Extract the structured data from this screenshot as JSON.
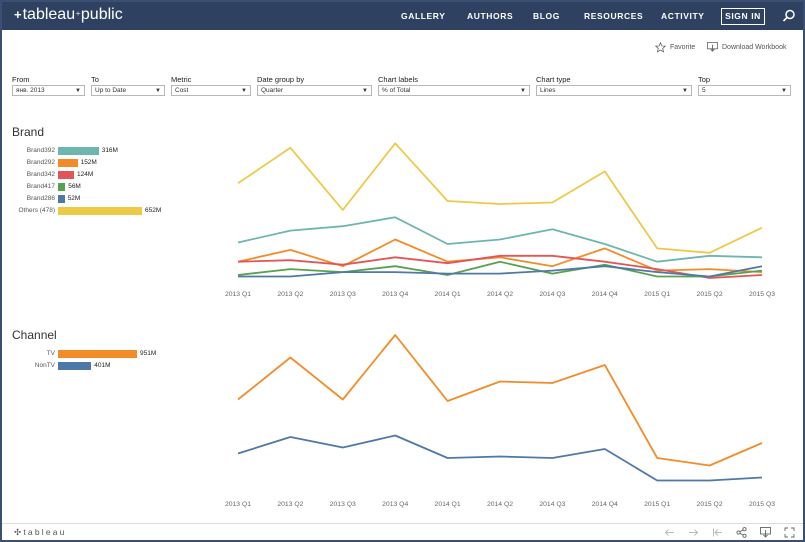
{
  "header": {
    "logo_text": "tableau",
    "logo_suffix": "public",
    "nav": [
      "GALLERY",
      "AUTHORS",
      "BLOG",
      "RESOURCES",
      "ACTIVITY"
    ],
    "sign_in": "SIGN IN"
  },
  "toolbar": {
    "favorite": "Favorite",
    "download": "Download Workbook"
  },
  "filters": [
    {
      "label": "From",
      "value": "янв. 2013"
    },
    {
      "label": "To",
      "value": "Up to Date"
    },
    {
      "label": "Metric",
      "value": "Cost"
    },
    {
      "label": "Date group by",
      "value": "Quarter"
    },
    {
      "label": "Chart labels",
      "value": "% of Total"
    },
    {
      "label": "Chart type",
      "value": "Lines"
    },
    {
      "label": "Top",
      "value": "5"
    }
  ],
  "brand": {
    "title": "Brand",
    "legend": [
      {
        "name": "Brand392",
        "value": 316,
        "label": "316M",
        "color": "#6db6ae"
      },
      {
        "name": "Brand292",
        "value": 152,
        "label": "152M",
        "color": "#f28c28"
      },
      {
        "name": "Brand342",
        "value": 124,
        "label": "124M",
        "color": "#e15759"
      },
      {
        "name": "Brand417",
        "value": 56,
        "label": "56M",
        "color": "#59a14f"
      },
      {
        "name": "Brand286",
        "value": 52,
        "label": "52M",
        "color": "#4e79a7"
      },
      {
        "name": "Others (478)",
        "value": 652,
        "label": "652M",
        "color": "#edc948"
      }
    ]
  },
  "channel": {
    "title": "Channel",
    "legend": [
      {
        "name": "TV",
        "value": 951,
        "label": "951M",
        "color": "#f28c28"
      },
      {
        "name": "NonTV",
        "value": 401,
        "label": "401M",
        "color": "#4e79a7"
      }
    ]
  },
  "chart_data": [
    {
      "type": "line",
      "x": [
        "2013 Q1",
        "2013 Q2",
        "2013 Q3",
        "2013 Q4",
        "2014 Q1",
        "2014 Q2",
        "2014 Q3",
        "2014 Q4",
        "2015 Q1",
        "2015 Q2",
        "2015 Q3"
      ],
      "ylim": [
        0,
        100
      ],
      "series": [
        {
          "name": "Others (478)",
          "color": "#edc948",
          "values": [
            64,
            88,
            46,
            91,
            52,
            50,
            51,
            72,
            20,
            17,
            34
          ]
        },
        {
          "name": "Brand392",
          "color": "#6db6ae",
          "values": [
            24,
            32,
            35,
            41,
            23,
            26,
            33,
            23,
            11,
            15,
            14
          ]
        },
        {
          "name": "Brand292",
          "color": "#f28c28",
          "values": [
            11,
            19,
            8,
            26,
            11,
            14,
            8,
            20,
            5,
            6,
            4
          ]
        },
        {
          "name": "Brand342",
          "color": "#e15759",
          "values": [
            11,
            12,
            9,
            14,
            10,
            15,
            15,
            11,
            6,
            0,
            2
          ]
        },
        {
          "name": "Brand417",
          "color": "#59a14f",
          "values": [
            2,
            6,
            4,
            8,
            2,
            11,
            3,
            9,
            1,
            1,
            5
          ]
        },
        {
          "name": "Brand286",
          "color": "#4e79a7",
          "values": [
            1,
            1,
            4,
            4,
            3,
            3,
            5,
            8,
            4,
            1,
            8
          ]
        }
      ]
    },
    {
      "type": "line",
      "x": [
        "2013 Q1",
        "2013 Q2",
        "2013 Q3",
        "2013 Q4",
        "2014 Q1",
        "2014 Q2",
        "2014 Q3",
        "2014 Q4",
        "2015 Q1",
        "2015 Q2",
        "2015 Q3"
      ],
      "ylim": [
        0,
        100
      ],
      "series": [
        {
          "name": "TV",
          "color": "#f28c28",
          "values": [
            55,
            83,
            55,
            98,
            54,
            67,
            66,
            78,
            16,
            11,
            26
          ]
        },
        {
          "name": "NonTV",
          "color": "#4e79a7",
          "values": [
            19,
            30,
            23,
            31,
            16,
            17,
            16,
            22,
            1,
            1,
            3
          ]
        }
      ]
    }
  ]
}
